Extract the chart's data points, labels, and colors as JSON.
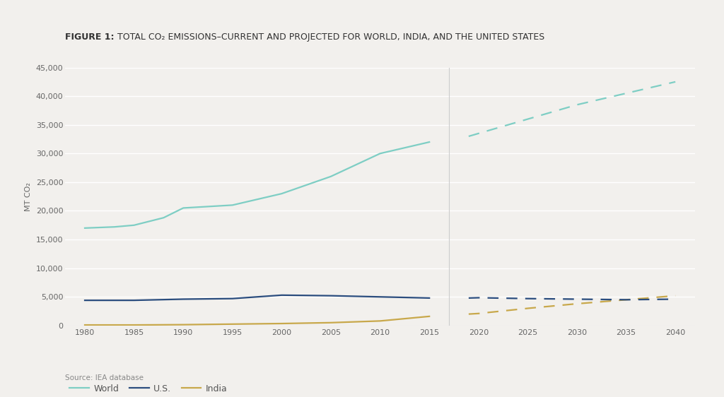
{
  "title_bold": "FIGURE 1:",
  "title_rest": " TOTAL CO₂ EMISSIONS–CURRENT AND PROJECTED FOR WORLD, INDIA, AND THE UNITED STATES",
  "ylabel": "MT CO₂",
  "source": "Source: IEA database",
  "background_color": "#f2f0ed",
  "plot_bg_color": "#f2f0ed",
  "ylim": [
    0,
    45000
  ],
  "yticks": [
    0,
    5000,
    10000,
    15000,
    20000,
    25000,
    30000,
    35000,
    40000,
    45000
  ],
  "xticks_historical": [
    1980,
    1985,
    1990,
    1995,
    2000,
    2005,
    2010,
    2015
  ],
  "xticks_projected": [
    2020,
    2025,
    2030,
    2035,
    2040
  ],
  "world_color": "#7ecec4",
  "us_color": "#2b4d7e",
  "india_color": "#c8a84b",
  "world_historical_x": [
    1980,
    1983,
    1985,
    1988,
    1990,
    1995,
    2000,
    2005,
    2010,
    2015
  ],
  "world_historical_y": [
    17000,
    17200,
    17500,
    18800,
    20500,
    21000,
    23000,
    26000,
    30000,
    32000
  ],
  "world_projected_x": [
    2019,
    2020,
    2025,
    2030,
    2035,
    2040
  ],
  "world_projected_y": [
    33000,
    33500,
    36000,
    38500,
    40500,
    42500
  ],
  "us_historical_x": [
    1980,
    1985,
    1990,
    1995,
    2000,
    2005,
    2010,
    2015
  ],
  "us_historical_y": [
    4400,
    4400,
    4600,
    4700,
    5300,
    5200,
    5000,
    4800
  ],
  "us_projected_x": [
    2019,
    2020,
    2025,
    2030,
    2035,
    2040
  ],
  "us_projected_y": [
    4800,
    4850,
    4700,
    4600,
    4500,
    4600
  ],
  "india_historical_x": [
    1980,
    1985,
    1990,
    1995,
    2000,
    2005,
    2010,
    2015
  ],
  "india_historical_y": [
    100,
    100,
    150,
    250,
    350,
    500,
    800,
    1600
  ],
  "india_projected_x": [
    2019,
    2020,
    2025,
    2030,
    2035,
    2040
  ],
  "india_projected_y": [
    2000,
    2100,
    3000,
    3800,
    4500,
    5200
  ],
  "legend_labels": [
    "World",
    "U.S.",
    "India"
  ],
  "gap_start": 2015,
  "gap_end": 2019,
  "separator_x": 2017
}
